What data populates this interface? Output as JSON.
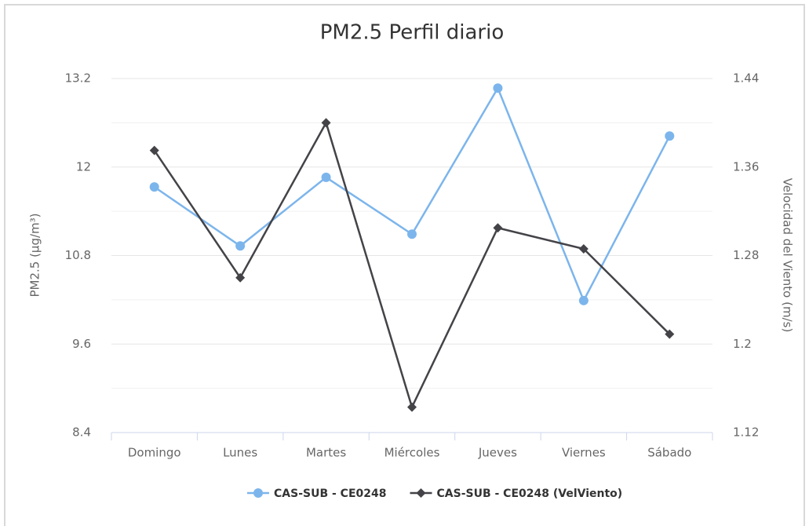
{
  "chart_data": {
    "type": "line",
    "title": "PM2.5 Perfil diario",
    "categories": [
      "Domingo",
      "Lunes",
      "Martes",
      "Miércoles",
      "Jueves",
      "Viernes",
      "Sábado"
    ],
    "series": [
      {
        "name": "CAS-SUB - CE0248",
        "color": "#7cb5ec",
        "values": [
          11.73,
          10.93,
          11.86,
          11.09,
          13.07,
          10.19,
          12.42
        ]
      },
      {
        "name": "CAS-SUB - CE0248 (VelViento)",
        "color": "#434348",
        "axis": "y2",
        "values": [
          1.375,
          1.26,
          1.4,
          1.143,
          1.305,
          1.286,
          1.209
        ]
      }
    ],
    "ylabel": "PM2.5 (µg/m³)",
    "y2label": "Velocidad del Viento (m/s)",
    "ylim": [
      8.4,
      13.2
    ],
    "yticks": [
      8.4,
      9.6,
      10.8,
      12,
      13.2
    ],
    "y2lim": [
      1.12,
      1.44
    ],
    "y2ticks": [
      1.12,
      1.2,
      1.28,
      1.36,
      1.44
    ],
    "grid": true,
    "legend": "bottom"
  }
}
